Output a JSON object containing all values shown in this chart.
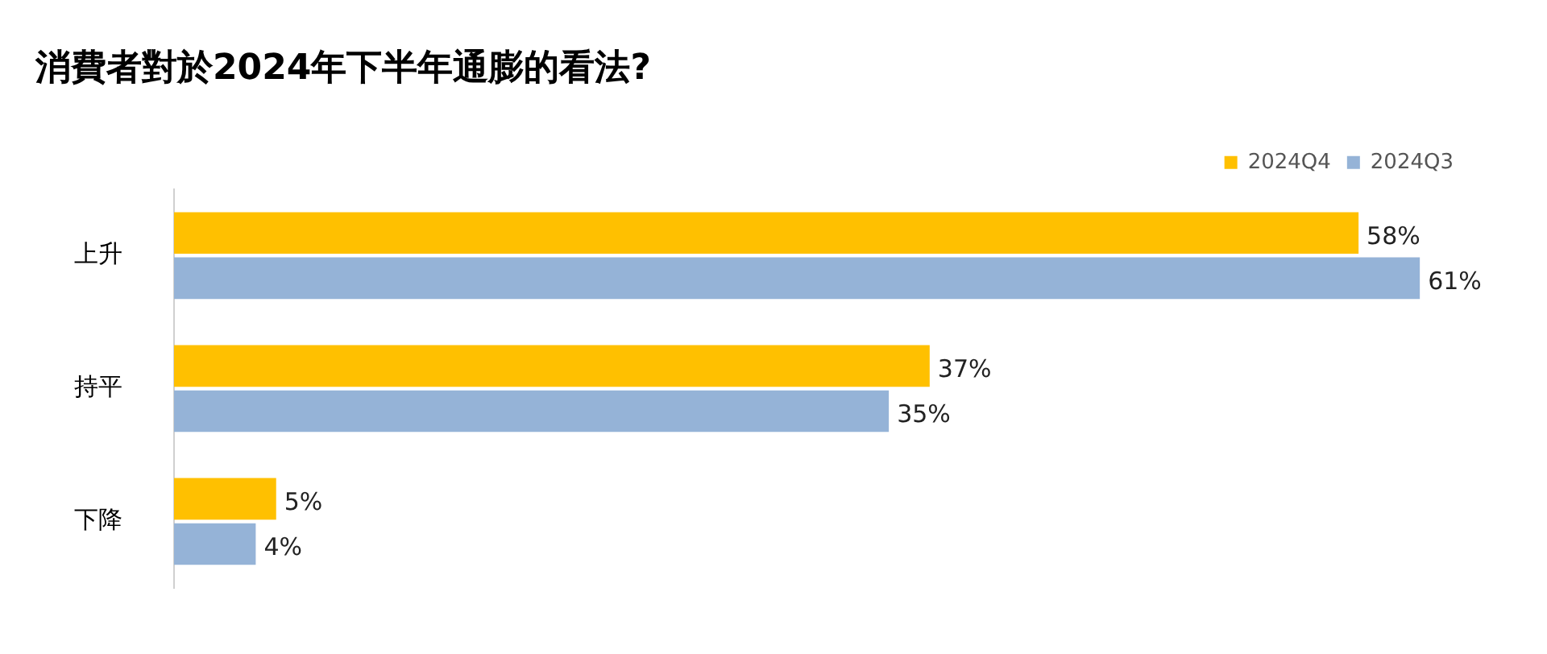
{
  "chart_data": {
    "type": "bar",
    "orientation": "horizontal",
    "title": "消費者對於2024年下半年通膨的看法?",
    "categories": [
      "上升",
      "持平",
      "下降"
    ],
    "series": [
      {
        "name": "2024Q4",
        "color": "#ffc000",
        "values": [
          58,
          37,
          5
        ],
        "value_labels": [
          "58%",
          "37%",
          "5%"
        ]
      },
      {
        "name": "2024Q3",
        "color": "#95b3d7",
        "values": [
          61,
          35,
          4
        ],
        "value_labels": [
          "61%",
          "35%",
          "4%"
        ]
      }
    ],
    "legend": "top right"
  }
}
